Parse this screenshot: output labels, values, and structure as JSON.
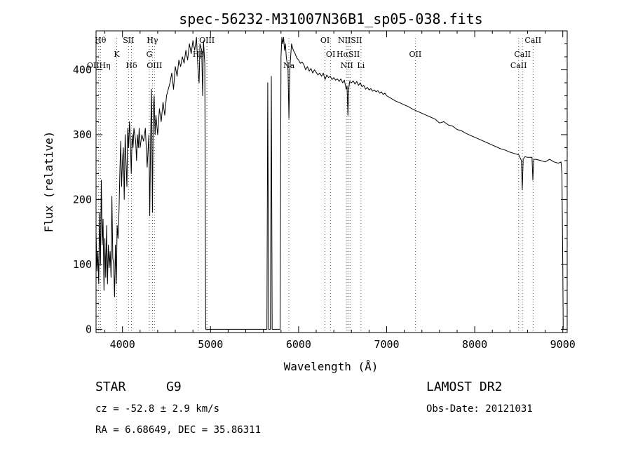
{
  "chart_data": {
    "type": "line",
    "title": "spec-56232-M31007N36B1_sp05-038.fits",
    "xlabel": "Wavelength (Å)",
    "ylabel": "Flux (relative)",
    "xlim": [
      3700,
      9050
    ],
    "ylim": [
      -5,
      460
    ],
    "xticks": [
      4000,
      5000,
      6000,
      7000,
      8000,
      9000
    ],
    "yticks": [
      0,
      100,
      200,
      300,
      400
    ],
    "grid": false,
    "series": [
      {
        "points": [
          [
            3700,
            150
          ],
          [
            3710,
            90
          ],
          [
            3720,
            120
          ],
          [
            3730,
            70
          ],
          [
            3740,
            180
          ],
          [
            3750,
            100
          ],
          [
            3760,
            230
          ],
          [
            3770,
            130
          ],
          [
            3780,
            170
          ],
          [
            3790,
            60
          ],
          [
            3800,
            140
          ],
          [
            3810,
            80
          ],
          [
            3820,
            160
          ],
          [
            3830,
            70
          ],
          [
            3840,
            130
          ],
          [
            3850,
            95
          ],
          [
            3860,
            120
          ],
          [
            3870,
            80
          ],
          [
            3880,
            205
          ],
          [
            3890,
            110
          ],
          [
            3900,
            100
          ],
          [
            3910,
            50
          ],
          [
            3920,
            130
          ],
          [
            3930,
            70
          ],
          [
            3940,
            160
          ],
          [
            3950,
            140
          ],
          [
            3960,
            180
          ],
          [
            3970,
            240
          ],
          [
            3980,
            290
          ],
          [
            3990,
            220
          ],
          [
            4000,
            260
          ],
          [
            4010,
            280
          ],
          [
            4020,
            200
          ],
          [
            4030,
            300
          ],
          [
            4040,
            260
          ],
          [
            4050,
            220
          ],
          [
            4060,
            310
          ],
          [
            4070,
            280
          ],
          [
            4080,
            320
          ],
          [
            4090,
            290
          ],
          [
            4100,
            240
          ],
          [
            4110,
            300
          ],
          [
            4120,
            280
          ],
          [
            4130,
            310
          ],
          [
            4140,
            300
          ],
          [
            4150,
            290
          ],
          [
            4160,
            260
          ],
          [
            4170,
            300
          ],
          [
            4180,
            280
          ],
          [
            4190,
            310
          ],
          [
            4200,
            280
          ],
          [
            4220,
            300
          ],
          [
            4240,
            290
          ],
          [
            4260,
            310
          ],
          [
            4280,
            250
          ],
          [
            4300,
            300
          ],
          [
            4310,
            175
          ],
          [
            4320,
            300
          ],
          [
            4330,
            370
          ],
          [
            4340,
            180
          ],
          [
            4350,
            340
          ],
          [
            4360,
            360
          ],
          [
            4370,
            300
          ],
          [
            4380,
            330
          ],
          [
            4400,
            300
          ],
          [
            4420,
            340
          ],
          [
            4440,
            320
          ],
          [
            4460,
            350
          ],
          [
            4480,
            330
          ],
          [
            4500,
            360
          ],
          [
            4520,
            370
          ],
          [
            4540,
            380
          ],
          [
            4560,
            395
          ],
          [
            4580,
            370
          ],
          [
            4600,
            405
          ],
          [
            4620,
            390
          ],
          [
            4640,
            415
          ],
          [
            4660,
            405
          ],
          [
            4680,
            420
          ],
          [
            4700,
            410
          ],
          [
            4720,
            430
          ],
          [
            4740,
            415
          ],
          [
            4760,
            440
          ],
          [
            4780,
            425
          ],
          [
            4800,
            445
          ],
          [
            4820,
            430
          ],
          [
            4840,
            450
          ],
          [
            4860,
            395
          ],
          [
            4870,
            380
          ],
          [
            4880,
            440
          ],
          [
            4900,
            430
          ],
          [
            4910,
            360
          ],
          [
            4920,
            445
          ],
          [
            4935,
            410
          ],
          [
            4945,
            0
          ],
          [
            5640,
            0
          ],
          [
            5650,
            380
          ],
          [
            5660,
            0
          ],
          [
            5680,
            0
          ],
          [
            5690,
            390
          ],
          [
            5700,
            0
          ],
          [
            5790,
            0
          ],
          [
            5800,
            420
          ],
          [
            5810,
            450
          ],
          [
            5820,
            440
          ],
          [
            5830,
            450
          ],
          [
            5840,
            430
          ],
          [
            5850,
            440
          ],
          [
            5860,
            420
          ],
          [
            5880,
            400
          ],
          [
            5890,
            325
          ],
          [
            5900,
            400
          ],
          [
            5920,
            440
          ],
          [
            5940,
            430
          ],
          [
            5960,
            425
          ],
          [
            5980,
            418
          ],
          [
            6000,
            415
          ],
          [
            6020,
            410
          ],
          [
            6040,
            412
          ],
          [
            6060,
            408
          ],
          [
            6080,
            400
          ],
          [
            6100,
            405
          ],
          [
            6120,
            398
          ],
          [
            6140,
            402
          ],
          [
            6160,
            395
          ],
          [
            6180,
            400
          ],
          [
            6200,
            396
          ],
          [
            6220,
            392
          ],
          [
            6240,
            395
          ],
          [
            6260,
            390
          ],
          [
            6280,
            395
          ],
          [
            6300,
            385
          ],
          [
            6320,
            392
          ],
          [
            6340,
            388
          ],
          [
            6360,
            390
          ],
          [
            6380,
            385
          ],
          [
            6400,
            388
          ],
          [
            6420,
            384
          ],
          [
            6440,
            386
          ],
          [
            6460,
            382
          ],
          [
            6480,
            386
          ],
          [
            6500,
            380
          ],
          [
            6520,
            384
          ],
          [
            6540,
            370
          ],
          [
            6550,
            375
          ],
          [
            6560,
            330
          ],
          [
            6570,
            372
          ],
          [
            6580,
            382
          ],
          [
            6600,
            380
          ],
          [
            6620,
            383
          ],
          [
            6640,
            378
          ],
          [
            6660,
            382
          ],
          [
            6680,
            376
          ],
          [
            6700,
            380
          ],
          [
            6720,
            374
          ],
          [
            6740,
            376
          ],
          [
            6760,
            370
          ],
          [
            6780,
            373
          ],
          [
            6800,
            369
          ],
          [
            6820,
            371
          ],
          [
            6840,
            367
          ],
          [
            6860,
            369
          ],
          [
            6880,
            366
          ],
          [
            6900,
            368
          ],
          [
            6920,
            364
          ],
          [
            6940,
            366
          ],
          [
            6960,
            362
          ],
          [
            6980,
            364
          ],
          [
            7000,
            360
          ],
          [
            7050,
            356
          ],
          [
            7100,
            352
          ],
          [
            7150,
            349
          ],
          [
            7200,
            346
          ],
          [
            7250,
            343
          ],
          [
            7300,
            339
          ],
          [
            7350,
            336
          ],
          [
            7400,
            333
          ],
          [
            7450,
            330
          ],
          [
            7500,
            327
          ],
          [
            7550,
            324
          ],
          [
            7600,
            318
          ],
          [
            7650,
            320
          ],
          [
            7700,
            315
          ],
          [
            7750,
            313
          ],
          [
            7800,
            308
          ],
          [
            7850,
            306
          ],
          [
            7900,
            302
          ],
          [
            7950,
            299
          ],
          [
            8000,
            296
          ],
          [
            8050,
            293
          ],
          [
            8100,
            290
          ],
          [
            8150,
            287
          ],
          [
            8200,
            284
          ],
          [
            8250,
            281
          ],
          [
            8300,
            278
          ],
          [
            8350,
            276
          ],
          [
            8400,
            273
          ],
          [
            8450,
            271
          ],
          [
            8500,
            269
          ],
          [
            8530,
            260
          ],
          [
            8540,
            215
          ],
          [
            8550,
            262
          ],
          [
            8570,
            266
          ],
          [
            8600,
            265
          ],
          [
            8650,
            265
          ],
          [
            8660,
            230
          ],
          [
            8670,
            262
          ],
          [
            8700,
            262
          ],
          [
            8750,
            260
          ],
          [
            8800,
            258
          ],
          [
            8850,
            262
          ],
          [
            8900,
            258
          ],
          [
            8950,
            256
          ],
          [
            8980,
            258
          ],
          [
            8990,
            240
          ],
          [
            9000,
            100
          ],
          [
            9005,
            0
          ]
        ]
      }
    ],
    "line_markers": [
      {
        "wl": 3750,
        "row": 0,
        "label": "Hθ"
      },
      {
        "wl": 3730,
        "row": 2,
        "label": "OIIHη"
      },
      {
        "wl": 3934,
        "row": 1,
        "label": "K"
      },
      {
        "wl": 4069,
        "row": 0,
        "label": "SII"
      },
      {
        "wl": 4102,
        "row": 2,
        "label": "Hδ"
      },
      {
        "wl": 4340,
        "row": 0,
        "label": "Hγ"
      },
      {
        "wl": 4305,
        "row": 1,
        "label": "G"
      },
      {
        "wl": 4363,
        "row": 2,
        "label": "OIII"
      },
      {
        "wl": 4959,
        "row": 0,
        "label": "OIII"
      },
      {
        "wl": 4861,
        "row": 1,
        "label": "Hβ"
      },
      {
        "wl": 5890,
        "row": 2,
        "label": "Na"
      },
      {
        "wl": 6300,
        "row": 0,
        "label": "OI"
      },
      {
        "wl": 6364,
        "row": 1,
        "label": "OI"
      },
      {
        "wl": 6584,
        "row": 0,
        "label": "NIISII"
      },
      {
        "wl": 6563,
        "row": 1,
        "label": "HαSII"
      },
      {
        "wl": 6548,
        "row": 2,
        "label": "NII"
      },
      {
        "wl": 6708,
        "row": 2,
        "label": "Li"
      },
      {
        "wl": 7325,
        "row": 1,
        "label": "OII"
      },
      {
        "wl": 8662,
        "row": 0,
        "label": "CaII"
      },
      {
        "wl": 8542,
        "row": 1,
        "label": "CaII"
      },
      {
        "wl": 8498,
        "row": 2,
        "label": "CaII"
      }
    ]
  },
  "info": {
    "class_label": "STAR",
    "subclass": "G9",
    "survey": "LAMOST DR2",
    "redshift": "cz = -52.8 ± 2.9 km/s",
    "obs_date": "Obs-Date: 20121031",
    "coords": "RA =   6.68649, DEC =  35.86311"
  },
  "colors": {
    "line": "#000000",
    "marker": "#555555",
    "background": "#ffffff"
  }
}
